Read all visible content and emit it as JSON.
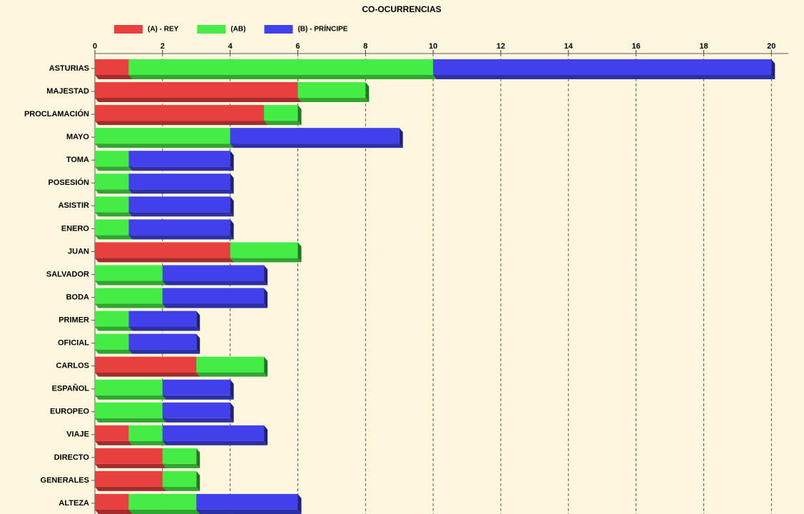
{
  "chart_data": {
    "type": "stacked-bar-horizontal",
    "title": "CO-OCURRENCIAS",
    "categories": [
      "ASTURIAS",
      "MAJESTAD",
      "PROCLAMACIÓN",
      "MAYO",
      "TOMA",
      "POSESIÓN",
      "ASISTIR",
      "ENERO",
      "JUAN",
      "SALVADOR",
      "BODA",
      "PRIMER",
      "OFICIAL",
      "CARLOS",
      "ESPAÑOL",
      "EUROPEO",
      "VIAJE",
      "DIRECTO",
      "GENERALES",
      "ALTEZA"
    ],
    "series": [
      {
        "name": "(A) - REY",
        "color": "#e8403f",
        "values": [
          1,
          6,
          5,
          0,
          0,
          0,
          0,
          0,
          4,
          0,
          0,
          0,
          0,
          3,
          0,
          0,
          1,
          2,
          2,
          1
        ]
      },
      {
        "name": "(AB)",
        "color": "#45ec45",
        "values": [
          9,
          2,
          1,
          4,
          1,
          1,
          1,
          1,
          2,
          2,
          2,
          1,
          1,
          2,
          2,
          2,
          1,
          1,
          1,
          2
        ]
      },
      {
        "name": "(B) - PRÍNCIPE",
        "color": "#4141ec",
        "values": [
          10,
          0,
          0,
          5,
          3,
          3,
          3,
          3,
          0,
          3,
          3,
          2,
          2,
          0,
          2,
          2,
          3,
          0,
          0,
          3
        ]
      }
    ],
    "xlim": [
      0,
      20.5
    ],
    "xticks": [
      0,
      2,
      4,
      6,
      8,
      10,
      12,
      14,
      16,
      18,
      20
    ],
    "grid": true,
    "legend": "top-left"
  }
}
